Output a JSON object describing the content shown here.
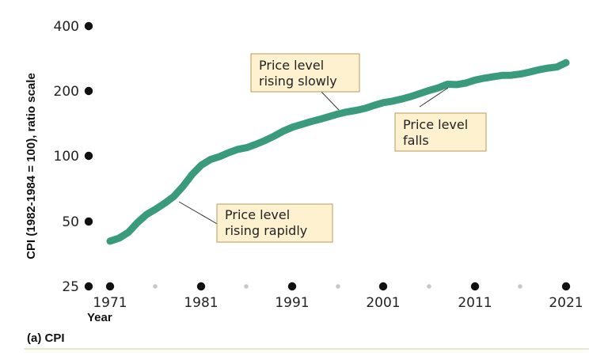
{
  "chart_data": {
    "type": "line",
    "title": "",
    "caption": "(a) CPI",
    "xlabel": "Year",
    "ylabel": "CPI (1982-1984 = 100), ratio scale",
    "y_scale": "log",
    "xlim": [
      1971,
      2021
    ],
    "ylim": [
      25,
      400
    ],
    "x_ticks": [
      "1971",
      "1981",
      "1991",
      "2001",
      "2011",
      "2021"
    ],
    "y_ticks": [
      "25",
      "50",
      "100",
      "200",
      "400"
    ],
    "grid": false,
    "line_color": "#3a9a7c",
    "series": [
      {
        "x": [
          1971,
          1972,
          1973,
          1974,
          1975,
          1976,
          1977,
          1978,
          1979,
          1980,
          1981,
          1982,
          1983,
          1984,
          1985,
          1986,
          1987,
          1988,
          1989,
          1990,
          1991,
          1992,
          1993,
          1994,
          1995,
          1996,
          1997,
          1998,
          1999,
          2000,
          2001,
          2002,
          2003,
          2004,
          2005,
          2006,
          2007,
          2008,
          2009,
          2010,
          2011,
          2012,
          2013,
          2014,
          2015,
          2016,
          2017,
          2018,
          2019,
          2020,
          2021
        ],
        "values": [
          40.5,
          41.8,
          44.4,
          49.3,
          53.8,
          56.9,
          60.6,
          65.2,
          72.6,
          82.4,
          90.9,
          96.5,
          99.6,
          103.9,
          107.6,
          109.6,
          113.6,
          118.3,
          124.0,
          130.7,
          136.2,
          140.3,
          144.5,
          148.2,
          152.4,
          156.9,
          160.5,
          163.0,
          166.6,
          172.2,
          177.1,
          179.9,
          184.0,
          188.9,
          195.3,
          201.6,
          207.3,
          215.3,
          214.5,
          218.1,
          224.9,
          229.6,
          233.0,
          236.7,
          237.0,
          240.0,
          245.1,
          251.1,
          255.7,
          258.8,
          271.0
        ]
      }
    ],
    "annotations": [
      {
        "lines": [
          "Price level",
          "rising slowly"
        ]
      },
      {
        "lines": [
          "Price level",
          "falls"
        ]
      },
      {
        "lines": [
          "Price level",
          "rising rapidly"
        ]
      }
    ]
  }
}
